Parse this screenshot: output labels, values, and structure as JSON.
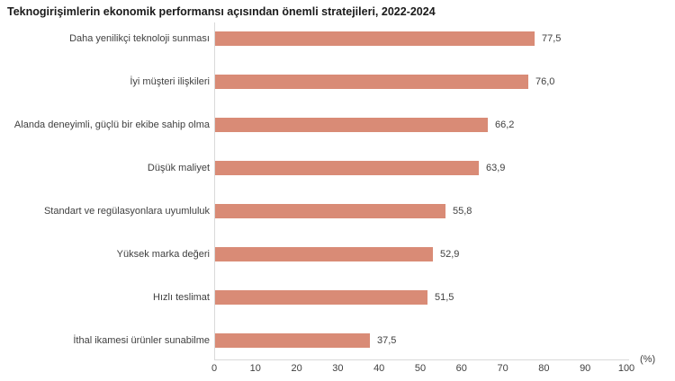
{
  "chart": {
    "title": "Teknogirişimlerin ekonomik performansı açısından önemli stratejileri, 2022-2024",
    "unit_label": "(%)"
  },
  "chart_data": {
    "type": "bar",
    "orientation": "horizontal",
    "title": "Teknogirişimlerin ekonomik performansı açısından önemli stratejileri, 2022-2024",
    "categories": [
      "Daha yenilikçi teknoloji sunması",
      "İyi müşteri ilişkileri",
      "Alanda deneyimli, güçlü bir ekibe sahip olma",
      "Düşük maliyet",
      "Standart ve regülasyonlara uyumluluk",
      "Yüksek marka değeri",
      "Hızlı teslimat",
      "İthal ikamesi ürünler sunabilme"
    ],
    "values": [
      77.5,
      76.0,
      66.2,
      63.9,
      55.8,
      52.9,
      51.5,
      37.5
    ],
    "value_labels": [
      "77,5",
      "76,0",
      "66,2",
      "63,9",
      "55,8",
      "52,9",
      "51,5",
      "37,5"
    ],
    "xlabel": "(%)",
    "ylabel": "",
    "xlim": [
      0,
      100
    ],
    "xticks": [
      0,
      10,
      20,
      30,
      40,
      50,
      60,
      70,
      80,
      90,
      100
    ],
    "grid": false,
    "legend": null,
    "bar_color": "#d98b76",
    "axis_color": "#d9d9d9"
  }
}
